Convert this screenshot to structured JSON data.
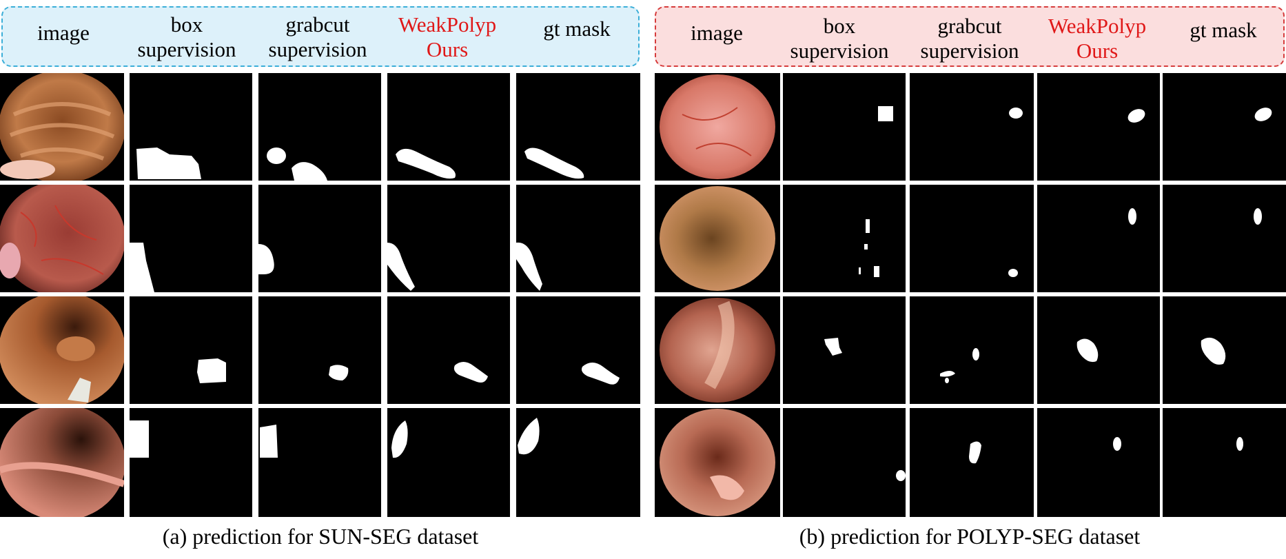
{
  "panels": [
    {
      "caption": "(a) prediction for SUN-SEG  dataset",
      "headers": [
        {
          "l1": "image",
          "l2": ""
        },
        {
          "l1": "box",
          "l2": "supervision"
        },
        {
          "l1": "grabcut",
          "l2": "supervision"
        },
        {
          "l1": "WeakPolyp",
          "l2": "Ours"
        },
        {
          "l1": "gt mask",
          "l2": ""
        }
      ]
    },
    {
      "caption": "(b) prediction for POLYP-SEG  dataset",
      "headers": [
        {
          "l1": "image",
          "l2": ""
        },
        {
          "l1": "box",
          "l2": "supervision"
        },
        {
          "l1": "grabcut",
          "l2": "supervision"
        },
        {
          "l1": "WeakPolyp",
          "l2": "Ours"
        },
        {
          "l1": "gt mask",
          "l2": ""
        }
      ]
    }
  ],
  "colors": {
    "highlight_text": "#e01818",
    "left_header_bg": "#ddf1fa",
    "left_header_border": "#3aaed8",
    "right_header_bg": "#fbdede",
    "right_header_border": "#d63c3c"
  }
}
